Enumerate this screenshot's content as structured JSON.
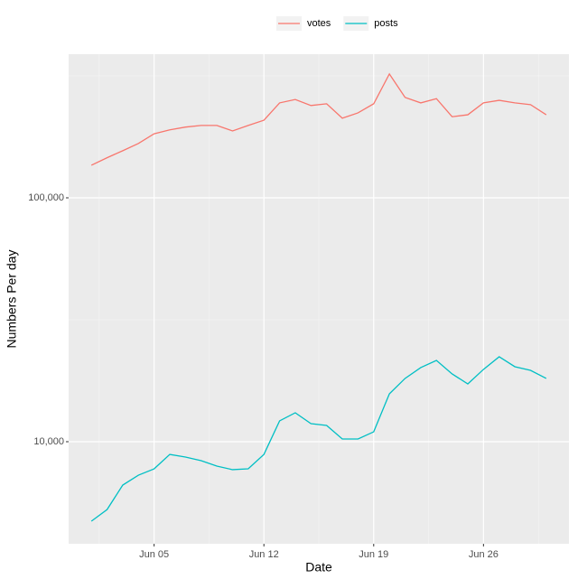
{
  "chart_data": {
    "type": "line",
    "x_label": "Date",
    "y_label": "Numbers Per day",
    "x": [
      "Jun 01",
      "Jun 02",
      "Jun 03",
      "Jun 04",
      "Jun 05",
      "Jun 06",
      "Jun 07",
      "Jun 08",
      "Jun 09",
      "Jun 10",
      "Jun 11",
      "Jun 12",
      "Jun 13",
      "Jun 14",
      "Jun 15",
      "Jun 16",
      "Jun 17",
      "Jun 18",
      "Jun 19",
      "Jun 20",
      "Jun 21",
      "Jun 22",
      "Jun 23",
      "Jun 24",
      "Jun 25",
      "Jun 26",
      "Jun 27",
      "Jun 28",
      "Jun 29",
      "Jun 30"
    ],
    "xticks": [
      "Jun 05",
      "Jun 12",
      "Jun 19",
      "Jun 26"
    ],
    "series": [
      {
        "name": "votes",
        "color": "#F8766D",
        "values": [
          136000,
          146000,
          156000,
          167000,
          183000,
          190000,
          195000,
          198000,
          198000,
          188000,
          198000,
          208000,
          245000,
          253000,
          239000,
          243000,
          212000,
          223000,
          243000,
          322000,
          258000,
          245000,
          255000,
          215000,
          219000,
          245000,
          251000,
          245000,
          241000,
          219000
        ]
      },
      {
        "name": "posts",
        "color": "#00BFC4",
        "values": [
          4720,
          5270,
          6640,
          7290,
          7740,
          8870,
          8650,
          8360,
          7940,
          7680,
          7740,
          8870,
          12170,
          13140,
          11860,
          11660,
          10260,
          10260,
          10980,
          15710,
          18170,
          20130,
          21540,
          18960,
          17260,
          19790,
          22300,
          20300,
          19610,
          18170
        ]
      }
    ],
    "ylim": [
      3815,
      388000
    ],
    "log_y": true,
    "yticks": [
      {
        "value": 10000,
        "label": "10,000"
      },
      {
        "value": 100000,
        "label": "100,000"
      }
    ],
    "grid": true,
    "legend": "top"
  }
}
